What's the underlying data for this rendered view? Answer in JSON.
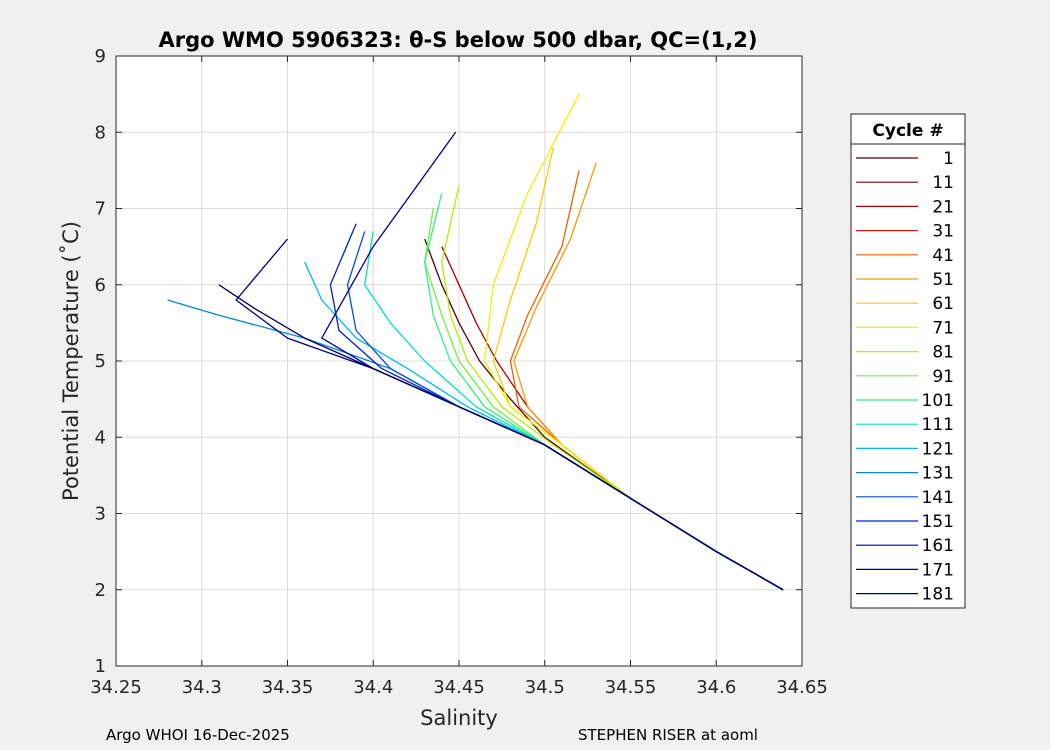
{
  "footer": {
    "left": "Argo WHOI 16-Dec-2025",
    "right": "STEPHEN RISER at aoml"
  },
  "chart_data": {
    "type": "line",
    "title": "Argo WMO 5906323: θ-S below 500 dbar,  QC=(1,2)",
    "xlabel": "Salinity",
    "ylabel": "Potential Temperature (˚C)",
    "xlim": [
      34.25,
      34.65
    ],
    "ylim": [
      1,
      9
    ],
    "xticks": [
      "34.25",
      "34.3",
      "34.35",
      "34.4",
      "34.45",
      "34.5",
      "34.55",
      "34.6",
      "34.65"
    ],
    "yticks": [
      "1",
      "2",
      "3",
      "4",
      "5",
      "6",
      "7",
      "8",
      "9"
    ],
    "grid": true,
    "legend": {
      "title": "Cycle #",
      "placement": "outside-right",
      "entries": [
        "1",
        "11",
        "21",
        "31",
        "41",
        "51",
        "61",
        "71",
        "81",
        "91",
        "101",
        "111",
        "121",
        "131",
        "141",
        "151",
        "161",
        "171",
        "181"
      ],
      "colors": [
        "#500000",
        "#800000",
        "#aa0000",
        "#d42000",
        "#f06000",
        "#ff9800",
        "#ffc800",
        "#f0f000",
        "#b0f000",
        "#70f040",
        "#30f080",
        "#00e0c0",
        "#00b8f0",
        "#0088d8",
        "#0050e0",
        "#0020c8",
        "#0000a0",
        "#000080",
        "#000060"
      ]
    },
    "series": [
      {
        "name": "1",
        "color": "#500000",
        "x": [
          34.639,
          34.6,
          34.55,
          34.5,
          34.48,
          34.462,
          34.45,
          34.44,
          34.43
        ],
        "y": [
          2.0,
          2.5,
          3.2,
          4.0,
          4.5,
          5.0,
          5.5,
          6.0,
          6.6
        ]
      },
      {
        "name": "21",
        "color": "#aa0000",
        "x": [
          34.639,
          34.6,
          34.55,
          34.51,
          34.49,
          34.472,
          34.46,
          34.45,
          34.44
        ],
        "y": [
          2.0,
          2.5,
          3.2,
          3.9,
          4.4,
          5.0,
          5.5,
          6.0,
          6.5
        ]
      },
      {
        "name": "41",
        "color": "#f06000",
        "x": [
          34.639,
          34.6,
          34.55,
          34.51,
          34.485,
          34.48,
          34.49,
          34.51,
          34.52
        ],
        "y": [
          2.0,
          2.5,
          3.2,
          3.9,
          4.4,
          5.0,
          5.6,
          6.5,
          7.5
        ]
      },
      {
        "name": "51",
        "color": "#ff9800",
        "x": [
          34.639,
          34.6,
          34.55,
          34.51,
          34.49,
          34.482,
          34.495,
          34.515,
          34.53
        ],
        "y": [
          2.0,
          2.5,
          3.2,
          3.9,
          4.4,
          5.0,
          5.7,
          6.6,
          7.6
        ]
      },
      {
        "name": "61",
        "color": "#ffc800",
        "x": [
          34.639,
          34.6,
          34.55,
          34.51,
          34.48,
          34.47,
          34.48,
          34.495,
          34.505
        ],
        "y": [
          2.0,
          2.5,
          3.2,
          3.9,
          4.4,
          5.0,
          5.8,
          6.8,
          7.8
        ]
      },
      {
        "name": "71",
        "color": "#f0f000",
        "x": [
          34.639,
          34.6,
          34.55,
          34.51,
          34.48,
          34.465,
          34.47,
          34.49,
          34.52
        ],
        "y": [
          2.0,
          2.5,
          3.2,
          3.9,
          4.4,
          5.0,
          6.0,
          7.2,
          8.5
        ]
      },
      {
        "name": "81",
        "color": "#b0f000",
        "x": [
          34.639,
          34.6,
          34.55,
          34.505,
          34.475,
          34.455,
          34.445,
          34.44,
          34.45
        ],
        "y": [
          2.0,
          2.5,
          3.2,
          3.9,
          4.4,
          5.0,
          5.6,
          6.3,
          7.3
        ]
      },
      {
        "name": "91",
        "color": "#70f040",
        "x": [
          34.639,
          34.6,
          34.55,
          34.5,
          34.47,
          34.45,
          34.44,
          34.43,
          34.435
        ],
        "y": [
          2.0,
          2.5,
          3.2,
          3.9,
          4.4,
          5.0,
          5.6,
          6.3,
          7.0
        ]
      },
      {
        "name": "101",
        "color": "#30f080",
        "x": [
          34.639,
          34.6,
          34.55,
          34.5,
          34.465,
          34.445,
          34.435,
          34.43,
          34.44
        ],
        "y": [
          2.0,
          2.5,
          3.2,
          3.9,
          4.4,
          5.0,
          5.6,
          6.3,
          7.2
        ]
      },
      {
        "name": "111",
        "color": "#00e0c0",
        "x": [
          34.639,
          34.6,
          34.55,
          34.5,
          34.46,
          34.43,
          34.41,
          34.395,
          34.4
        ],
        "y": [
          2.0,
          2.5,
          3.2,
          3.9,
          4.4,
          5.0,
          5.5,
          6.0,
          6.7
        ]
      },
      {
        "name": "121",
        "color": "#00b8f0",
        "x": [
          34.639,
          34.6,
          34.55,
          34.5,
          34.455,
          34.42,
          34.39,
          34.37,
          34.36
        ],
        "y": [
          2.0,
          2.5,
          3.2,
          3.9,
          4.4,
          4.9,
          5.3,
          5.8,
          6.3
        ]
      },
      {
        "name": "131",
        "color": "#0088d8",
        "x": [
          34.639,
          34.6,
          34.55,
          34.5,
          34.45,
          34.41,
          34.36,
          34.31,
          34.28
        ],
        "y": [
          2.0,
          2.5,
          3.2,
          3.9,
          4.4,
          4.9,
          5.3,
          5.6,
          5.8
        ]
      },
      {
        "name": "141",
        "color": "#0050e0",
        "x": [
          34.639,
          34.6,
          34.55,
          34.5,
          34.45,
          34.41,
          34.39,
          34.385,
          34.395
        ],
        "y": [
          2.0,
          2.5,
          3.2,
          3.9,
          4.4,
          4.9,
          5.4,
          6.0,
          6.7
        ]
      },
      {
        "name": "151",
        "color": "#0020c8",
        "x": [
          34.639,
          34.6,
          34.55,
          34.5,
          34.45,
          34.405,
          34.38,
          34.375,
          34.39
        ],
        "y": [
          2.0,
          2.5,
          3.2,
          3.9,
          4.4,
          4.9,
          5.4,
          6.0,
          6.8
        ]
      },
      {
        "name": "161",
        "color": "#0000a0",
        "x": [
          34.639,
          34.6,
          34.55,
          34.5,
          34.45,
          34.4,
          34.37,
          34.4,
          34.448
        ],
        "y": [
          2.0,
          2.5,
          3.2,
          3.9,
          4.4,
          4.9,
          5.3,
          6.5,
          8.0
        ]
      },
      {
        "name": "171",
        "color": "#000080",
        "x": [
          34.639,
          34.6,
          34.55,
          34.5,
          34.45,
          34.4,
          34.35,
          34.32,
          34.35
        ],
        "y": [
          2.0,
          2.5,
          3.2,
          3.9,
          4.4,
          4.9,
          5.3,
          5.8,
          6.6
        ]
      },
      {
        "name": "181",
        "color": "#000060",
        "x": [
          34.639,
          34.6,
          34.55,
          34.5,
          34.45,
          34.4,
          34.36,
          34.33,
          34.31
        ],
        "y": [
          2.0,
          2.5,
          3.2,
          3.9,
          4.4,
          4.9,
          5.3,
          5.7,
          6.0
        ]
      }
    ]
  }
}
